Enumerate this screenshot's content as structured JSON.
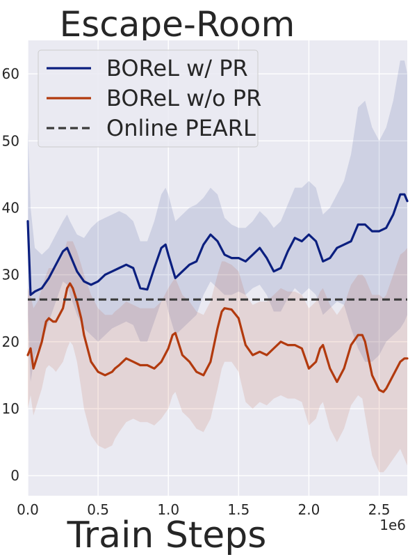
{
  "chart_data": {
    "type": "line",
    "title": "Escape-Room",
    "xlabel": "Train Steps",
    "ylabel": "",
    "x_offset_label": "1e6",
    "xlim": [
      0,
      2.7
    ],
    "ylim": [
      -3,
      65
    ],
    "x_ticks": [
      0.0,
      0.5,
      1.0,
      1.5,
      2.0,
      2.5
    ],
    "x_tick_labels": [
      "0.0",
      "0.5",
      "1.0",
      "1.5",
      "2.0",
      "2.5"
    ],
    "y_ticks": [
      0,
      10,
      20,
      30,
      40,
      50,
      60
    ],
    "y_tick_labels": [
      "0",
      "10",
      "20",
      "30",
      "40",
      "50",
      "60"
    ],
    "grid": true,
    "legend_position": "top-left",
    "colors": {
      "background": "#EAEAF2",
      "grid": "#FFFFFF",
      "with_pr": "#0B1F7F",
      "without_pr": "#B23A0E",
      "online_pearl": "#3A3A3A"
    },
    "series": [
      {
        "name": "BOReL w/ PR",
        "color": "#0B1F7F",
        "x": [
          0.0,
          0.02,
          0.05,
          0.1,
          0.15,
          0.2,
          0.25,
          0.28,
          0.3,
          0.35,
          0.4,
          0.45,
          0.5,
          0.55,
          0.6,
          0.65,
          0.7,
          0.75,
          0.8,
          0.85,
          0.9,
          0.95,
          0.98,
          1.0,
          1.05,
          1.1,
          1.15,
          1.2,
          1.25,
          1.3,
          1.35,
          1.4,
          1.45,
          1.5,
          1.55,
          1.6,
          1.65,
          1.7,
          1.75,
          1.8,
          1.85,
          1.9,
          1.95,
          2.0,
          2.05,
          2.1,
          2.15,
          2.2,
          2.25,
          2.3,
          2.35,
          2.4,
          2.45,
          2.5,
          2.55,
          2.6,
          2.65,
          2.68,
          2.7
        ],
        "y": [
          38,
          27,
          27.5,
          28,
          29.5,
          31.5,
          33.5,
          34,
          33,
          30.5,
          29,
          28.5,
          29,
          30,
          30.5,
          31,
          31.5,
          31,
          28,
          27.8,
          31,
          34,
          34.5,
          33,
          29.5,
          30.5,
          31.5,
          32,
          34.5,
          36,
          35,
          33,
          32.5,
          32.5,
          32,
          33,
          34,
          32.5,
          30.5,
          31,
          33.5,
          35.5,
          35,
          36,
          35,
          32,
          32.5,
          34,
          34.5,
          35,
          37.5,
          37.5,
          36.5,
          36.5,
          37,
          39,
          42,
          42,
          41
        ],
        "upper": [
          52,
          40,
          34,
          33,
          34,
          36,
          38,
          39,
          38,
          36,
          35.5,
          37,
          38,
          38.5,
          39,
          39.5,
          39,
          38,
          35,
          35,
          38,
          42,
          43,
          42,
          38,
          39,
          40,
          40.5,
          41.5,
          43,
          42,
          38.5,
          37.5,
          37,
          37,
          38,
          39.5,
          38.5,
          37,
          38,
          40.5,
          43,
          43,
          44,
          43,
          39,
          40,
          42,
          44,
          48,
          55,
          56,
          52,
          50,
          52,
          56,
          62,
          62,
          60
        ],
        "lower": [
          24,
          14,
          18,
          20,
          23,
          26,
          29,
          28.5,
          27,
          24,
          22,
          21,
          20,
          21,
          22,
          22.5,
          23,
          22.5,
          20,
          20,
          23,
          26,
          26.5,
          24.5,
          21,
          22,
          23,
          24,
          27,
          29,
          28,
          27,
          27,
          27.5,
          27,
          28,
          28.5,
          27,
          24.5,
          24.5,
          26.5,
          28,
          27,
          28,
          27,
          24,
          25,
          26,
          25.5,
          22,
          19,
          17,
          17,
          18,
          20,
          21,
          22,
          23,
          24
        ]
      },
      {
        "name": "BOReL w/o PR",
        "color": "#B23A0E",
        "x": [
          0.0,
          0.02,
          0.04,
          0.07,
          0.1,
          0.13,
          0.15,
          0.18,
          0.2,
          0.25,
          0.28,
          0.3,
          0.32,
          0.35,
          0.38,
          0.4,
          0.45,
          0.5,
          0.55,
          0.6,
          0.62,
          0.65,
          0.7,
          0.75,
          0.8,
          0.85,
          0.9,
          0.95,
          1.0,
          1.03,
          1.05,
          1.1,
          1.15,
          1.2,
          1.25,
          1.3,
          1.35,
          1.38,
          1.4,
          1.45,
          1.5,
          1.55,
          1.6,
          1.65,
          1.7,
          1.75,
          1.8,
          1.85,
          1.9,
          1.95,
          2.0,
          2.05,
          2.08,
          2.1,
          2.15,
          2.2,
          2.25,
          2.3,
          2.35,
          2.38,
          2.4,
          2.45,
          2.5,
          2.53,
          2.55,
          2.6,
          2.65,
          2.68,
          2.7
        ],
        "y": [
          18,
          19,
          16,
          18,
          20,
          23,
          23.5,
          23,
          23,
          25,
          28,
          28.7,
          28,
          26,
          23.5,
          21,
          17,
          15.5,
          15,
          15.5,
          16,
          16.5,
          17.5,
          17,
          16.5,
          16.5,
          16,
          17,
          19,
          21,
          21.3,
          18,
          17,
          15.5,
          15,
          17,
          22,
          24.5,
          25,
          24.8,
          23.5,
          19.5,
          18,
          18.5,
          18,
          19,
          20,
          19.5,
          19.5,
          19,
          16,
          17,
          19,
          19.5,
          16,
          14,
          16,
          19.5,
          21,
          21,
          20,
          15,
          12.8,
          12.5,
          13,
          15,
          17,
          17.5,
          17.5
        ],
        "upper": [
          28,
          27,
          25,
          26,
          28,
          30,
          31,
          31,
          31,
          33,
          35,
          35,
          35,
          33.5,
          31.5,
          30,
          27,
          25,
          24,
          24,
          24.5,
          25,
          26,
          25.5,
          25,
          25,
          25,
          26,
          28,
          29,
          29.5,
          27,
          26,
          24.5,
          24,
          26,
          30,
          32,
          32,
          31.5,
          30.5,
          27,
          25.5,
          26,
          26,
          27,
          28,
          27.5,
          27.5,
          27,
          25,
          26,
          27.5,
          28,
          25.5,
          24,
          25.5,
          28.5,
          30,
          30,
          29.5,
          27,
          27,
          26.5,
          27,
          30,
          33,
          33.5,
          34
        ],
        "lower": [
          10,
          12,
          9,
          11,
          13,
          16,
          16.5,
          16,
          15.5,
          17,
          19,
          20,
          19.5,
          17,
          13,
          10,
          6,
          4.5,
          4,
          4.5,
          5.5,
          6.5,
          8,
          8.5,
          8,
          8,
          7.5,
          8.5,
          10,
          12,
          12.5,
          9.5,
          8.5,
          7,
          6.5,
          8.5,
          13,
          16,
          17,
          17,
          15.5,
          11,
          10,
          11,
          10.5,
          11.5,
          12,
          11.5,
          11.5,
          11,
          7.5,
          8.5,
          10.5,
          11,
          7,
          5,
          7,
          10.5,
          12,
          11.5,
          9,
          3,
          0.5,
          0.5,
          1,
          2.5,
          4,
          2.5,
          1.5
        ]
      },
      {
        "name": "Online PEARL",
        "color": "#3A3A3A",
        "style": "dashed",
        "x": [
          0.0,
          2.7
        ],
        "y": [
          26.3,
          26.3
        ]
      }
    ]
  }
}
